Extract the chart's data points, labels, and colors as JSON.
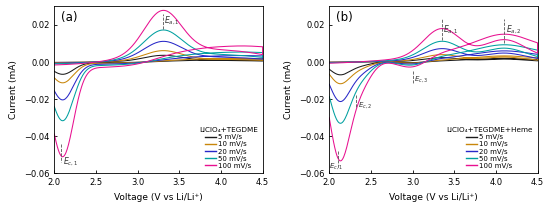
{
  "title_a": "(a)",
  "title_b": "(b)",
  "xlabel": "Voltage (V vs Li/Li⁺)",
  "ylabel": "Current (mA)",
  "xlim": [
    2.0,
    4.5
  ],
  "ylim": [
    -0.06,
    0.03
  ],
  "yticks": [
    -0.06,
    -0.04,
    -0.02,
    0.0,
    0.02
  ],
  "xticks": [
    2.0,
    2.5,
    3.0,
    3.5,
    4.0,
    4.5
  ],
  "legend_title_a": "LiClO₄+TEGDME",
  "legend_title_b": "LiClO₄+TEGDME+Heme",
  "scan_rates": [
    "5 mV/s",
    "10 mV/s",
    "20 mV/s",
    "50 mV/s",
    "100 mV/s"
  ],
  "colors": [
    "#1a1a1a",
    "#c8860a",
    "#2828c8",
    "#00a0a0",
    "#e81090"
  ],
  "scales_a": [
    0.13,
    0.22,
    0.4,
    0.62,
    1.0
  ],
  "scales_b": [
    0.13,
    0.22,
    0.4,
    0.62,
    1.0
  ]
}
